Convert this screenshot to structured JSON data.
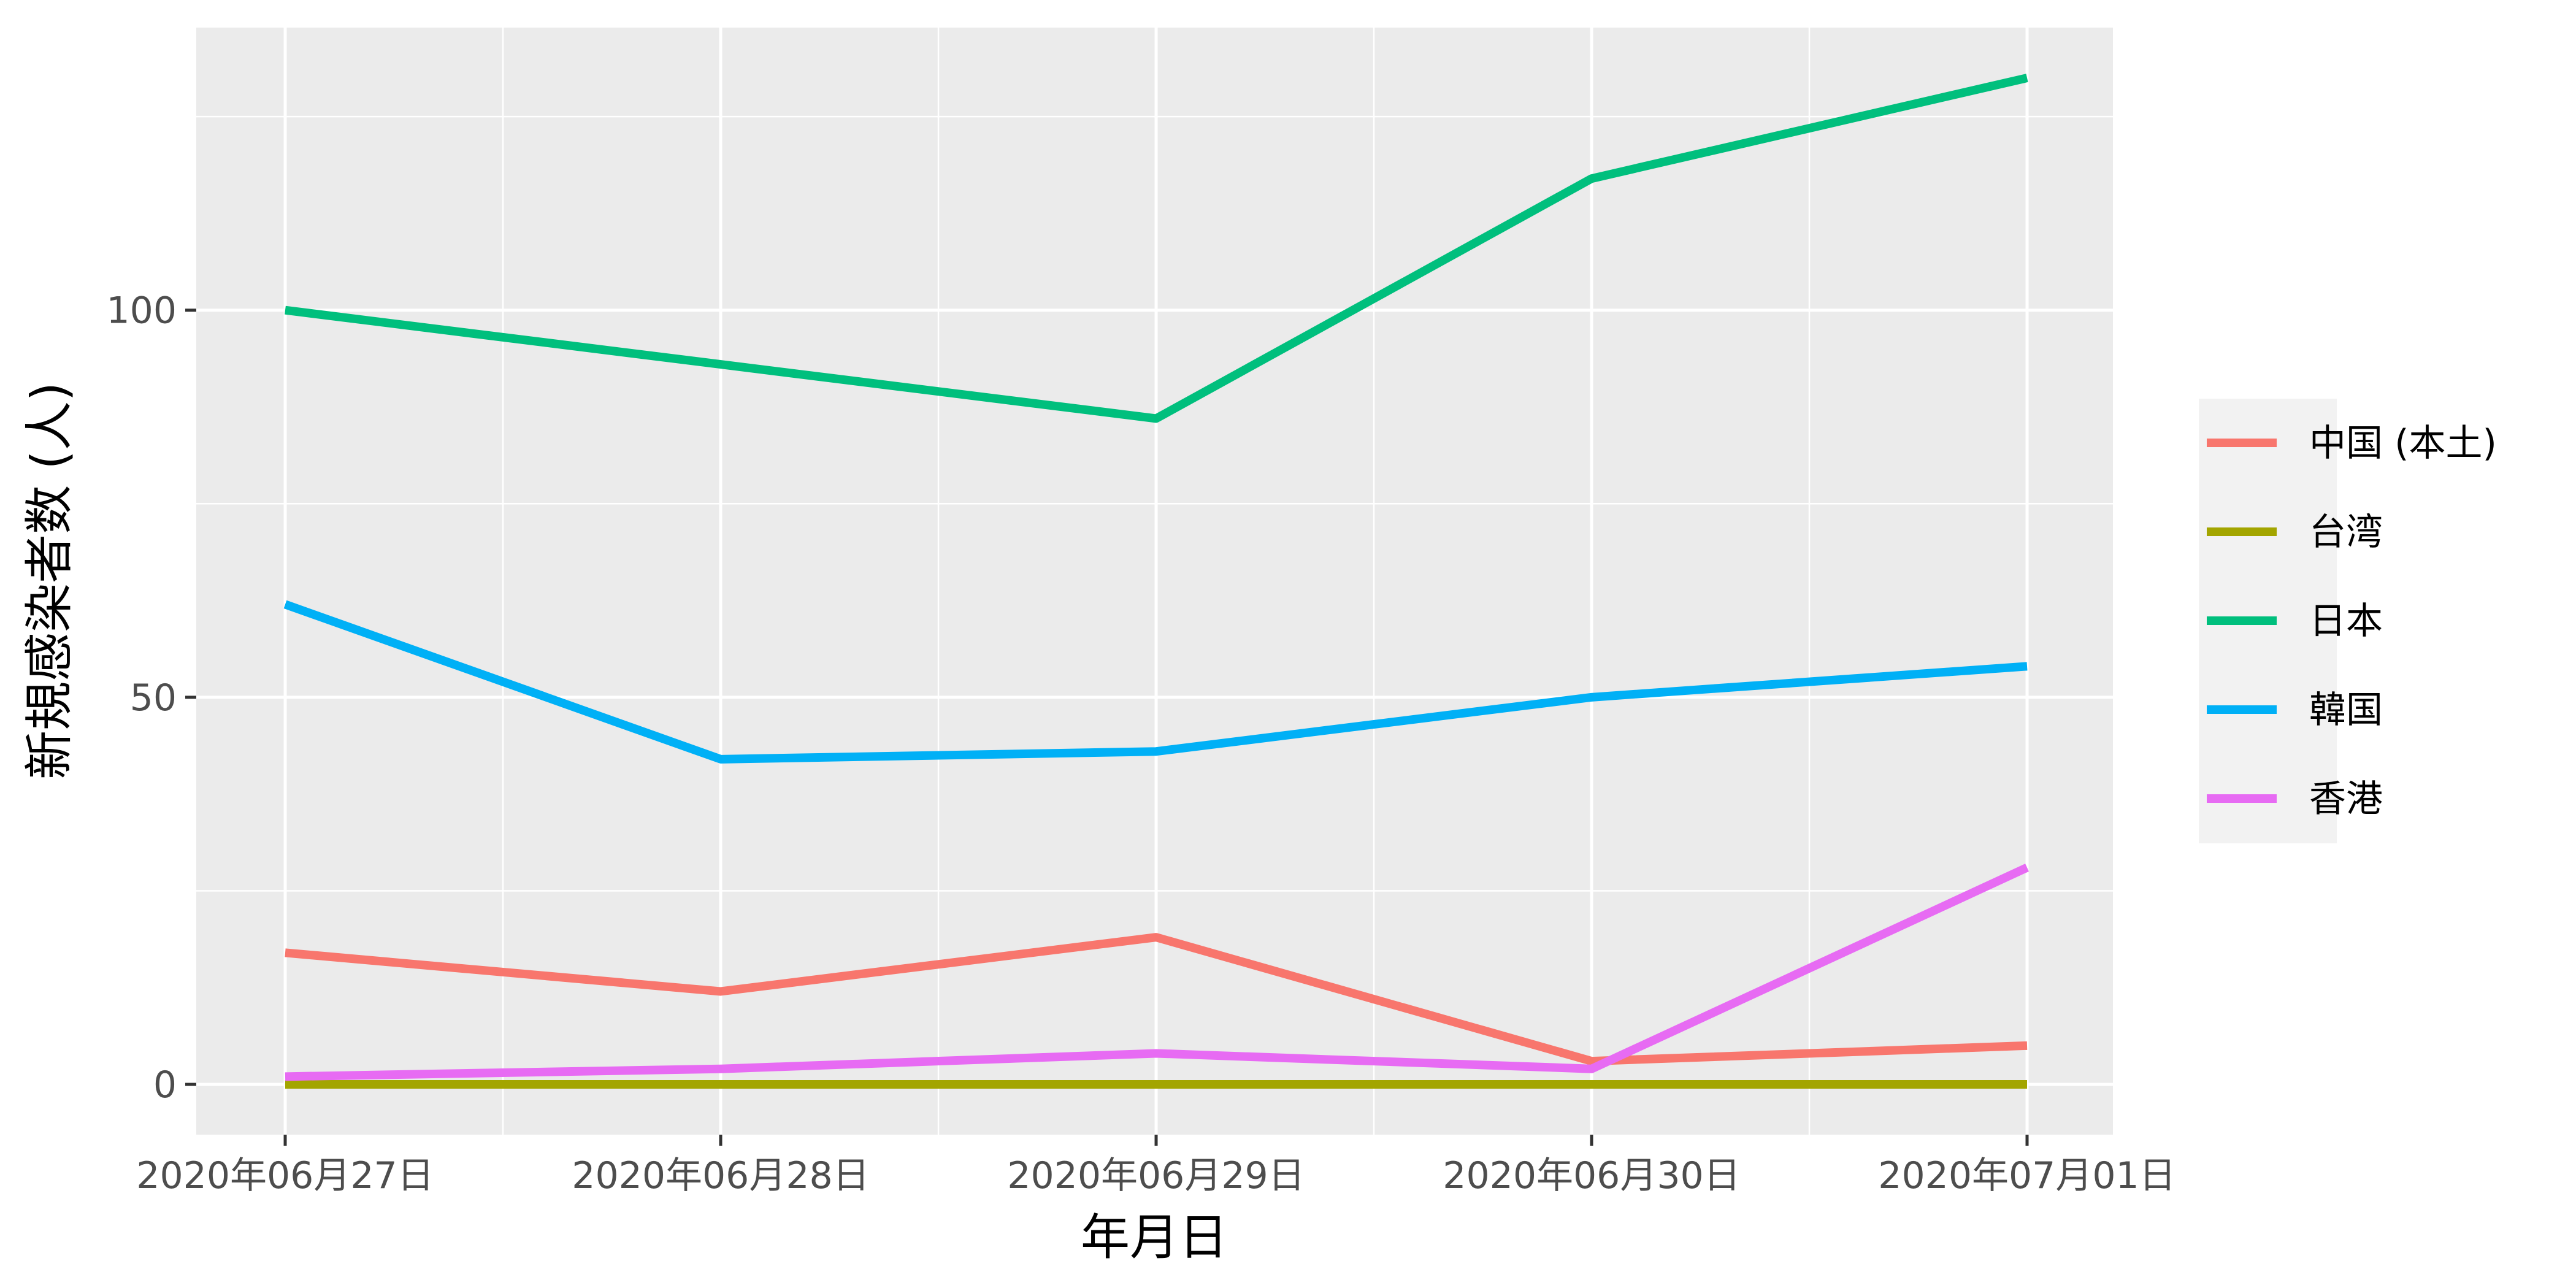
{
  "chart_data": {
    "type": "line",
    "title": "",
    "xlabel": "年月日",
    "ylabel": "新規感染者数 (人)",
    "categories": [
      "2020年06月27日",
      "2020年06月28日",
      "2020年06月29日",
      "2020年06月30日",
      "2020年07月01日"
    ],
    "ylim": [
      -6.5,
      136.5
    ],
    "yticks": [
      0,
      50,
      100
    ],
    "ytick_labels": [
      "0",
      "50",
      "100"
    ],
    "grid": true,
    "legend_position": "right",
    "series": [
      {
        "name": "中国 (本土)",
        "color": "#F8766D",
        "values": [
          17,
          12,
          19,
          3,
          5
        ]
      },
      {
        "name": "台湾",
        "color": "#A3A500",
        "values": [
          0,
          0,
          0,
          0,
          0
        ]
      },
      {
        "name": "日本",
        "color": "#00BF7D",
        "values": [
          100,
          93,
          86,
          117,
          130
        ]
      },
      {
        "name": "韓国",
        "color": "#00B0F6",
        "values": [
          62,
          42,
          43,
          50,
          54
        ]
      },
      {
        "name": "香港",
        "color": "#E76BF3",
        "values": [
          1,
          2,
          4,
          2,
          28
        ]
      }
    ]
  }
}
